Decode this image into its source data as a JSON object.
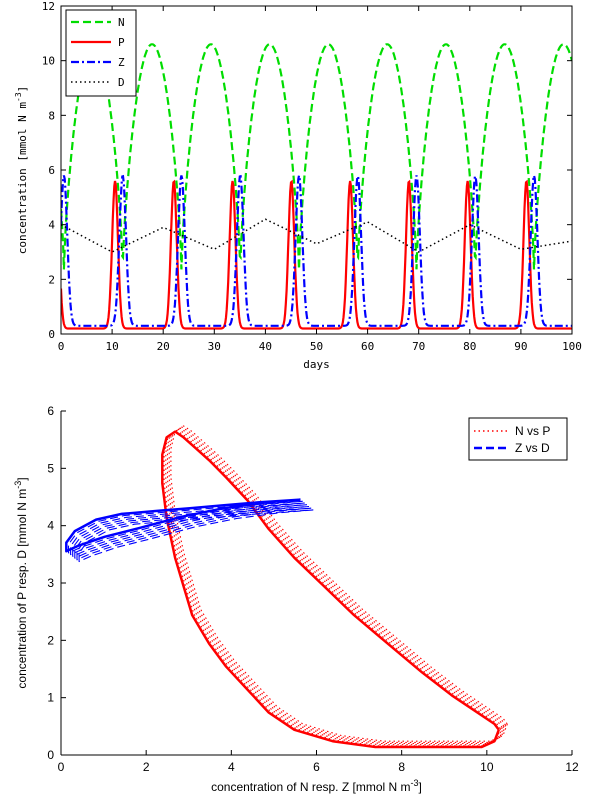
{
  "chart_data": [
    {
      "type": "line",
      "xlabel": "days",
      "ylabel": "concentration [mmol N m",
      "ylabel_sup": "-3",
      "ylabel_close": "]",
      "xlim": [
        0,
        100
      ],
      "ylim": [
        0,
        12
      ],
      "xticks": [
        "0",
        "10",
        "20",
        "30",
        "40",
        "50",
        "60",
        "70",
        "80",
        "90",
        "100"
      ],
      "yticks": [
        "0",
        "2",
        "4",
        "6",
        "8",
        "10",
        "12"
      ],
      "legend_position": "top-left",
      "grid": false,
      "series": [
        {
          "name": "N",
          "color": "#00dd00",
          "style": "dashed",
          "period": 11.5,
          "phase": 0.0,
          "min": 2.3,
          "max": 10.6
        },
        {
          "name": "P",
          "color": "#ff0000",
          "style": "solid",
          "period": 11.5,
          "phase": 0.0,
          "min": 0.2,
          "max": 5.6
        },
        {
          "name": "Z",
          "color": "#0000ff",
          "style": "dashdot",
          "period": 11.5,
          "phase": 0.0,
          "min": 0.3,
          "max": 5.8
        },
        {
          "name": "D",
          "color": "#000000",
          "style": "dotted",
          "x": [
            0,
            10,
            20,
            30,
            40,
            50,
            60,
            70,
            80,
            90,
            100
          ],
          "y": [
            4.0,
            3.0,
            3.9,
            3.1,
            4.2,
            3.3,
            4.1,
            3.0,
            4.0,
            3.1,
            3.4
          ]
        }
      ]
    },
    {
      "type": "line",
      "xlabel": "concentration of N resp. Z [mmol N m",
      "xlabel_sup": "-3",
      "xlabel_close": "]",
      "ylabel": "concentration of P resp. D [mmol N m",
      "ylabel_sup": "-3",
      "ylabel_close": "]",
      "xlim": [
        0,
        12
      ],
      "ylim": [
        0,
        6
      ],
      "xticks": [
        "0",
        "2",
        "4",
        "6",
        "8",
        "10",
        "12"
      ],
      "yticks": [
        "0",
        "1",
        "2",
        "3",
        "4",
        "5",
        "6"
      ],
      "legend_position": "top-right",
      "grid": false,
      "series": [
        {
          "name": "N vs P",
          "color": "#ff0000",
          "style": "dotted",
          "x": [
            10.4,
            10.3,
            10.0,
            9.4,
            8.5,
            7.5,
            6.5,
            5.6,
            5.0,
            4.5,
            4.0,
            3.6,
            3.2,
            3.0,
            2.8,
            2.6,
            2.5,
            2.5,
            2.6,
            2.8,
            3.0,
            3.3,
            3.6,
            4.0,
            4.5,
            5.0,
            5.6,
            6.3,
            7.0,
            7.8,
            8.6,
            9.3,
            9.9,
            10.3,
            10.4
          ],
          "y": [
            0.5,
            0.3,
            0.2,
            0.2,
            0.2,
            0.2,
            0.3,
            0.5,
            0.8,
            1.2,
            1.6,
            2.0,
            2.5,
            3.0,
            3.5,
            4.2,
            4.8,
            5.3,
            5.6,
            5.7,
            5.6,
            5.4,
            5.2,
            4.9,
            4.5,
            4.0,
            3.5,
            3.0,
            2.5,
            2.0,
            1.5,
            1.1,
            0.8,
            0.6,
            0.5
          ]
        },
        {
          "name": "Z vs D",
          "color": "#0000ff",
          "style": "dashed",
          "x": [
            5.8,
            5.0,
            4.0,
            3.0,
            2.0,
            1.2,
            0.6,
            0.3,
            0.3,
            0.5,
            1.0,
            1.6,
            2.4,
            3.2,
            4.0,
            4.8,
            5.4,
            5.8
          ],
          "y": [
            4.35,
            4.3,
            4.2,
            4.05,
            3.85,
            3.7,
            3.55,
            3.45,
            3.6,
            3.8,
            4.0,
            4.1,
            4.15,
            4.2,
            4.25,
            4.3,
            4.33,
            4.35
          ]
        }
      ]
    }
  ]
}
